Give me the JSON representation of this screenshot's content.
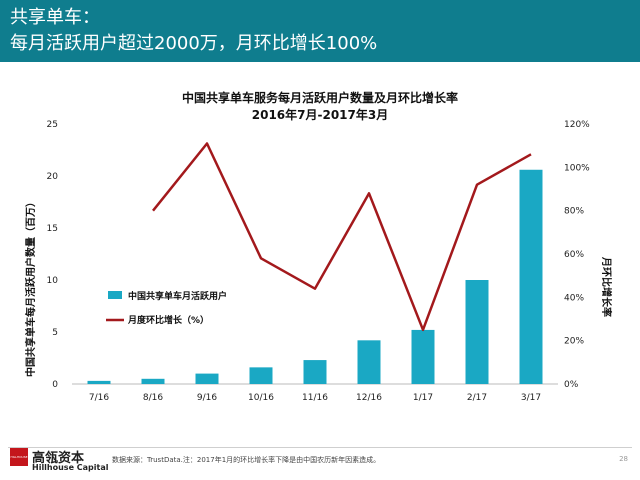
{
  "header": {
    "title": "共享单车：",
    "subtitle": "每月活跃用户超过2000万，月环比增长100%"
  },
  "colors": {
    "header_bg": "#0f7d8e",
    "bar": "#1aa8c4",
    "line": "#a3191c",
    "logo": "#c4161c"
  },
  "chart_data": {
    "type": "bar+line",
    "title": "中国共享单车服务每月活跃用户数量及月环比增长率",
    "subtitle": "2016年7月-2017年3月",
    "categories": [
      "7/16",
      "8/16",
      "9/16",
      "10/16",
      "11/16",
      "12/16",
      "1/17",
      "2/17",
      "3/17"
    ],
    "ylabel": "中国共享单车每月活跃用户数量（百万）",
    "y2label": "月环比增长率",
    "ylim": [
      0,
      25
    ],
    "y2lim": [
      0,
      120
    ],
    "yticks": [
      "0",
      "5",
      "10",
      "15",
      "20",
      "25"
    ],
    "y2ticks": [
      "0%",
      "20%",
      "40%",
      "60%",
      "80%",
      "100%",
      "120%"
    ],
    "series": [
      {
        "name": "中国共享单车月活跃用户",
        "type": "bar",
        "axis": "left",
        "values": [
          0.3,
          0.5,
          1.0,
          1.6,
          2.3,
          4.2,
          5.2,
          10.0,
          20.6
        ]
      },
      {
        "name": "月度环比增长（%）",
        "type": "line",
        "axis": "right",
        "values": [
          null,
          80,
          111,
          58,
          44,
          88,
          25,
          92,
          106
        ]
      }
    ],
    "legend": [
      "中国共享单车月活跃用户",
      "月度环比增长（%）"
    ]
  },
  "footer": {
    "logo_cn": "高瓴资本",
    "logo_en": "Hillhouse Capital",
    "logo_box_text": "HILLHOUSE",
    "source": "数据来源：TrustData.注：2017年1月的环比增长率下降是由中国农历新年因素造成。",
    "page": "28"
  }
}
